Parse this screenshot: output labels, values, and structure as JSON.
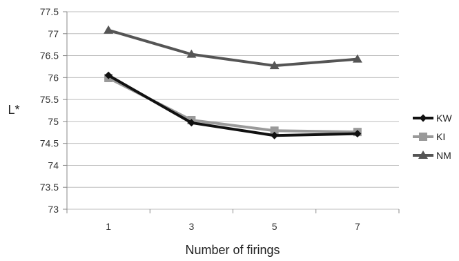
{
  "chart_data": {
    "type": "line",
    "xlabel": "Number of firings",
    "ylabel": "L*",
    "x": [
      "1",
      "3",
      "5",
      "7"
    ],
    "ylim": [
      73,
      77.5
    ],
    "yticks": [
      "77.5",
      "77",
      "76.5",
      "76",
      "75.5",
      "75",
      "74.5",
      "74",
      "73.5",
      "73"
    ],
    "grid": "horizontal",
    "legend_position": "right",
    "series": [
      {
        "name": "KW",
        "values": [
          76.05,
          74.97,
          74.68,
          74.72
        ],
        "color": "#111111",
        "marker": "diamond"
      },
      {
        "name": "KI",
        "values": [
          75.99,
          75.03,
          74.79,
          74.76
        ],
        "color": "#9a9a9a",
        "marker": "square"
      },
      {
        "name": "NM",
        "values": [
          77.08,
          76.53,
          76.27,
          76.42
        ],
        "color": "#555555",
        "marker": "triangle"
      }
    ]
  }
}
